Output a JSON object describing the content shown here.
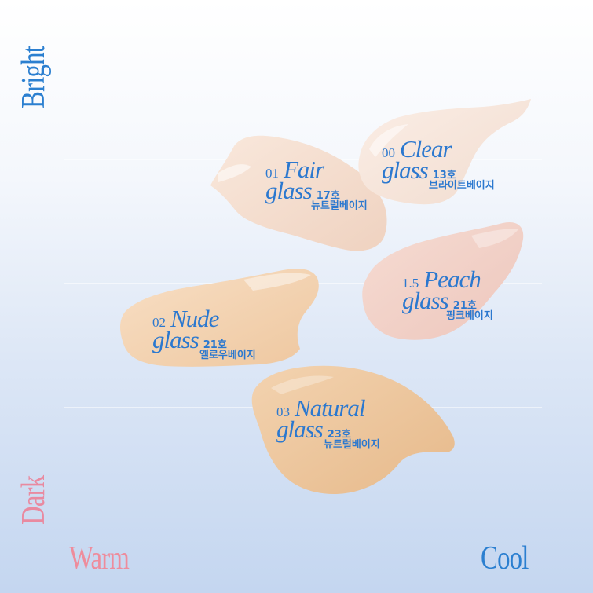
{
  "axes": {
    "top": "Bright",
    "bottom": "Dark",
    "left": "Warm",
    "right": "Cool"
  },
  "colors": {
    "axis_bright": "#2b7fd0",
    "axis_warm": "#ee8c9c",
    "label_text": "#2b78cf"
  },
  "products": [
    {
      "num": "01",
      "name": "Fair",
      "glass": "glass",
      "code": "17호",
      "ko": "뉴트럴베이지",
      "swatch_color": "#f3d9c8"
    },
    {
      "num": "00",
      "name": "Clear",
      "glass": "glass",
      "code": "13호",
      "ko": "브라이트베이지",
      "swatch_color": "#f6e4da"
    },
    {
      "num": "1.5",
      "name": "Peach",
      "glass": "glass",
      "code": "21호",
      "ko": "핑크베이지",
      "swatch_color": "#f1cfc6"
    },
    {
      "num": "02",
      "name": "Nude",
      "glass": "glass",
      "code": "21호",
      "ko": "옐로우베이지",
      "swatch_color": "#f1d0ae"
    },
    {
      "num": "03",
      "name": "Natural",
      "glass": "glass",
      "code": "23호",
      "ko": "뉴트럴베이지",
      "swatch_color": "#ebc296"
    }
  ]
}
